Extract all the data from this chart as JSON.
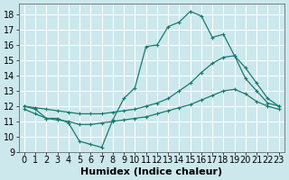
{
  "xlabel": "Humidex (Indice chaleur)",
  "bg_color": "#cce8ed",
  "grid_color": "#ffffff",
  "line_color": "#1a7a6e",
  "xlim": [
    -0.5,
    23.5
  ],
  "ylim": [
    9,
    18.7
  ],
  "yticks": [
    9,
    10,
    11,
    12,
    13,
    14,
    15,
    16,
    17,
    18
  ],
  "xticks": [
    0,
    1,
    2,
    3,
    4,
    5,
    6,
    7,
    8,
    9,
    10,
    11,
    12,
    13,
    14,
    15,
    16,
    17,
    18,
    19,
    20,
    21,
    22,
    23
  ],
  "line_top_x": [
    0,
    1,
    2,
    3,
    4,
    5,
    6,
    7,
    8,
    9,
    10,
    11,
    12,
    13,
    14,
    15,
    16,
    17,
    18,
    19,
    20,
    21,
    22,
    23
  ],
  "line_top_y": [
    12.0,
    11.8,
    11.2,
    11.2,
    10.9,
    9.7,
    9.5,
    9.3,
    11.1,
    12.5,
    13.2,
    15.9,
    16.0,
    17.2,
    17.5,
    18.2,
    17.9,
    16.5,
    16.7,
    15.3,
    13.8,
    13.0,
    12.2,
    12.0
  ],
  "line_mid_upper_x": [
    0,
    1,
    2,
    3,
    4,
    5,
    6,
    7,
    8,
    9,
    10,
    11,
    12,
    13,
    14,
    15,
    16,
    17,
    18,
    19,
    20,
    21,
    22,
    23
  ],
  "line_mid_upper_y": [
    12.0,
    11.9,
    11.8,
    11.7,
    11.6,
    11.5,
    11.5,
    11.5,
    11.6,
    11.7,
    11.8,
    12.0,
    12.2,
    12.5,
    13.0,
    13.5,
    14.2,
    14.8,
    15.2,
    15.3,
    14.5,
    13.5,
    12.5,
    12.0
  ],
  "line_bot_x": [
    0,
    1,
    2,
    3,
    4,
    5,
    6,
    7,
    8,
    9,
    10,
    11,
    12,
    13,
    14,
    15,
    16,
    17,
    18,
    19,
    20,
    21,
    22,
    23
  ],
  "line_bot_y": [
    11.8,
    11.5,
    11.2,
    11.1,
    11.0,
    10.8,
    10.8,
    10.9,
    11.0,
    11.1,
    11.2,
    11.3,
    11.5,
    11.7,
    11.9,
    12.1,
    12.4,
    12.7,
    13.0,
    13.1,
    12.8,
    12.3,
    12.0,
    11.8
  ],
  "font_size": 7,
  "lw": 0.9,
  "ms": 3.5
}
